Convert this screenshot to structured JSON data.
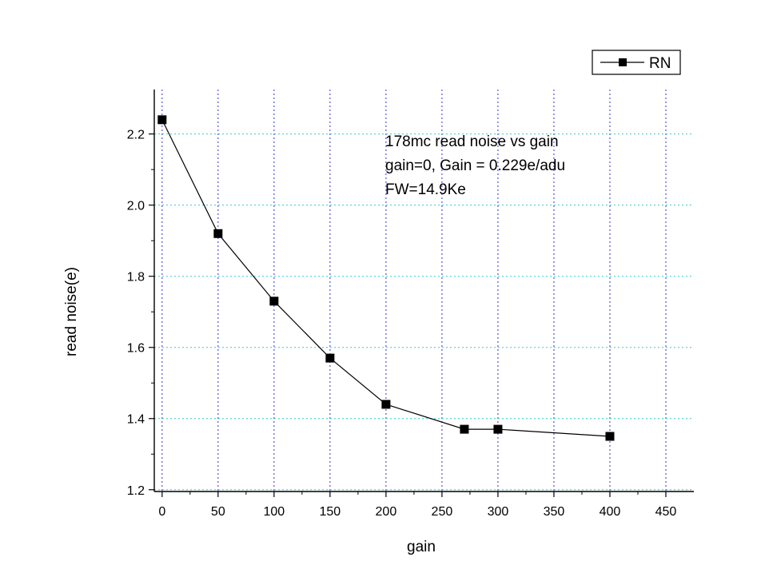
{
  "chart_data": {
    "type": "line",
    "title": "",
    "xlabel": "gain",
    "ylabel": "read noise(e)",
    "xlim": [
      -7,
      475
    ],
    "ylim": [
      1.195,
      2.325
    ],
    "x_ticks": [
      0,
      50,
      100,
      150,
      200,
      250,
      300,
      350,
      400,
      450
    ],
    "x_tick_labels": [
      "0",
      "50",
      "100",
      "150",
      "200",
      "250",
      "300",
      "350",
      "400",
      "450"
    ],
    "y_ticks": [
      1.2,
      1.4,
      1.6,
      1.8,
      2.0,
      2.2
    ],
    "y_tick_labels": [
      "1.2",
      "1.4",
      "1.6",
      "1.8",
      "2.0",
      "2.2"
    ],
    "grid": true,
    "legend_position": "top-right",
    "series": [
      {
        "name": "RN",
        "color": "#000000",
        "marker": "square",
        "x": [
          0,
          50,
          100,
          150,
          200,
          270,
          300,
          400
        ],
        "y": [
          2.24,
          1.92,
          1.73,
          1.57,
          1.44,
          1.37,
          1.37,
          1.35
        ]
      }
    ],
    "annotation_lines": [
      "178mc read noise vs gain",
      "gain=0, Gain = 0.229e/adu",
      "FW=14.9Ke"
    ],
    "colors": {
      "vertical_grid": "#3333cc",
      "horizontal_grid": "#33cccc"
    }
  }
}
